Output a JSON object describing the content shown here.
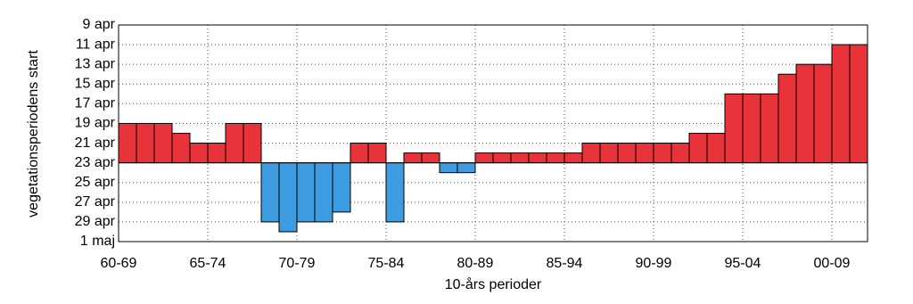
{
  "chart_data": {
    "type": "bar",
    "y_label": "vegetationsperiodens start",
    "x_label": "10-års perioder",
    "categories": [
      "60-69",
      null,
      null,
      null,
      null,
      "65-74",
      null,
      null,
      null,
      null,
      "70-79",
      null,
      null,
      null,
      null,
      "75-84",
      null,
      null,
      null,
      null,
      "80-89",
      null,
      null,
      null,
      null,
      "85-94",
      null,
      null,
      null,
      null,
      "90-99",
      null,
      null,
      null,
      null,
      "95-04",
      null,
      null,
      null,
      null,
      "00-09",
      null
    ],
    "values": [
      19,
      19,
      19,
      20,
      21,
      21,
      19,
      19,
      29,
      30,
      29,
      29,
      28,
      21,
      21,
      29,
      22,
      22,
      24,
      24,
      22,
      22,
      22,
      22,
      22,
      22,
      21,
      21,
      21,
      21,
      21,
      21,
      20,
      20,
      16,
      16,
      16,
      14,
      13,
      13,
      11,
      11
    ],
    "baseline": 23,
    "early_color": "#e8333b",
    "late_color": "#3d9be0",
    "ylim": [
      31,
      9
    ],
    "yticks": [
      {
        "value": 9,
        "label": "9 apr"
      },
      {
        "value": 11,
        "label": "11 apr"
      },
      {
        "value": 13,
        "label": "13 apr"
      },
      {
        "value": 15,
        "label": "15 apr"
      },
      {
        "value": 17,
        "label": "17 apr"
      },
      {
        "value": 19,
        "label": "19 apr"
      },
      {
        "value": 21,
        "label": "21 apr"
      },
      {
        "value": 23,
        "label": "23 apr"
      },
      {
        "value": 25,
        "label": "25 apr"
      },
      {
        "value": 27,
        "label": "27 apr"
      },
      {
        "value": 29,
        "label": "29 apr"
      },
      {
        "value": 31,
        "label": "1 maj"
      }
    ],
    "grid": true
  }
}
